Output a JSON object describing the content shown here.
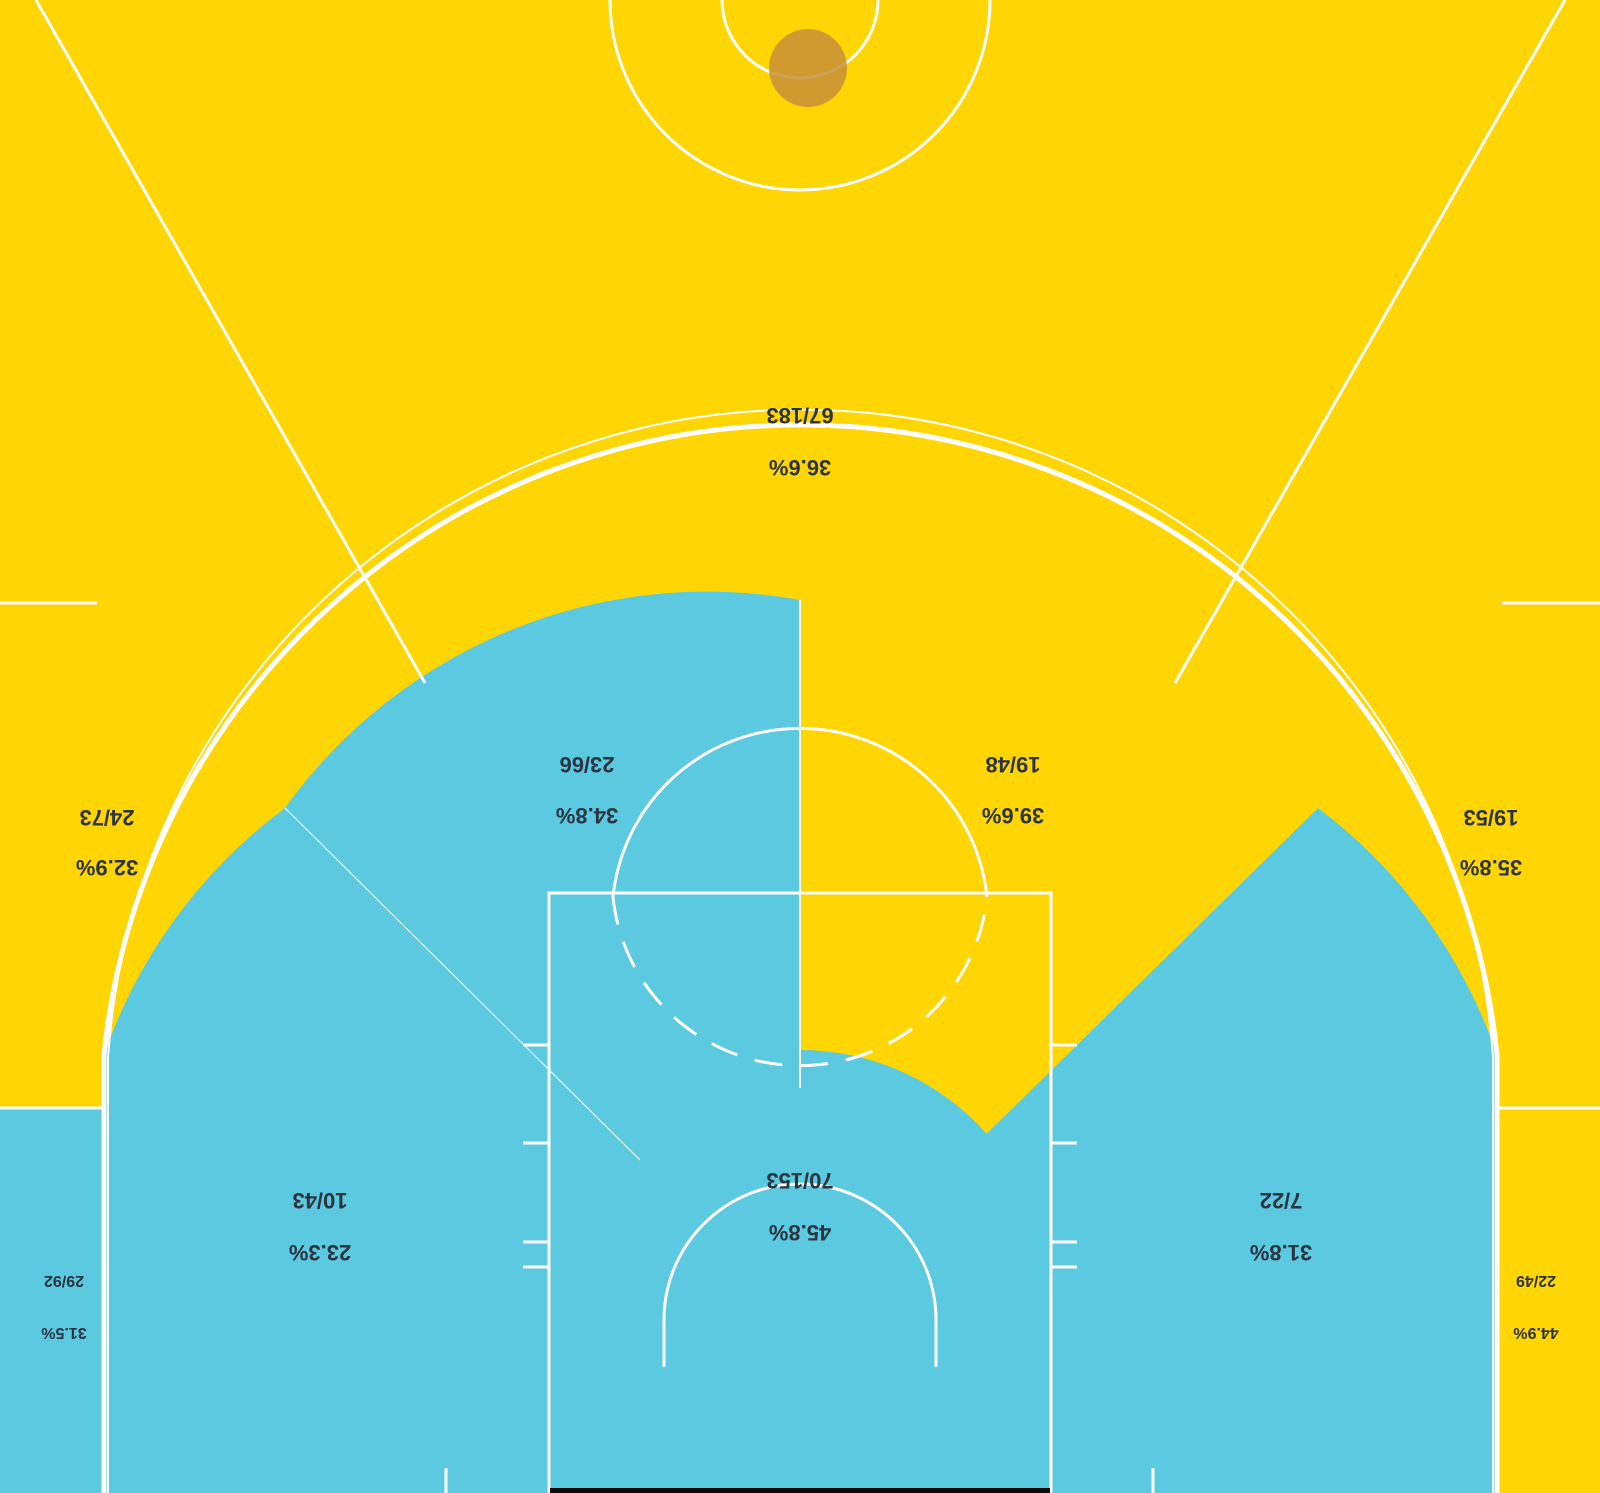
{
  "chart_data": {
    "type": "heatmap",
    "subtype": "basketball-shot-zones",
    "orientation": "rotated-180",
    "legend": {
      "hot": {
        "label": "",
        "color": "#FFD503"
      },
      "cold": {
        "label": "",
        "color": "#5BC9E0"
      }
    },
    "zones": [
      {
        "id": "above-break-three",
        "made": 67,
        "attempts": 183,
        "pct": 36.6,
        "fraction": "67/183",
        "percent": "36.6%",
        "temp": "hot"
      },
      {
        "id": "right-wing-three",
        "made": 24,
        "attempts": 73,
        "pct": 32.9,
        "fraction": "24/73",
        "percent": "32.9%",
        "temp": "hot"
      },
      {
        "id": "left-wing-three",
        "made": 19,
        "attempts": 53,
        "pct": 35.8,
        "fraction": "19/53",
        "percent": "35.8%",
        "temp": "hot"
      },
      {
        "id": "right-corner-three",
        "made": 29,
        "attempts": 92,
        "pct": 31.5,
        "fraction": "29/92",
        "percent": "31.5%",
        "temp": "cold"
      },
      {
        "id": "left-corner-three",
        "made": 22,
        "attempts": 49,
        "pct": 44.9,
        "fraction": "22/49",
        "percent": "44.9%",
        "temp": "hot"
      },
      {
        "id": "mid-range-right-top",
        "made": 23,
        "attempts": 66,
        "pct": 34.8,
        "fraction": "23/66",
        "percent": "34.8%",
        "temp": "cold"
      },
      {
        "id": "mid-range-left-top",
        "made": 19,
        "attempts": 48,
        "pct": 39.6,
        "fraction": "19/48",
        "percent": "39.6%",
        "temp": "hot"
      },
      {
        "id": "mid-range-right-baseline",
        "made": 10,
        "attempts": 43,
        "pct": 23.3,
        "fraction": "10/43",
        "percent": "23.3%",
        "temp": "cold"
      },
      {
        "id": "mid-range-left-baseline",
        "made": 7,
        "attempts": 22,
        "pct": 31.8,
        "fraction": "7/22",
        "percent": "31.8%",
        "temp": "cold"
      },
      {
        "id": "restricted-area",
        "made": 70,
        "attempts": 153,
        "pct": 45.8,
        "fraction": "70/153",
        "percent": "45.8%",
        "temp": "cold"
      }
    ]
  },
  "colors": {
    "hot": "#FFD503",
    "cold": "#5BC9E0",
    "lines": "#ffffff",
    "background": "#0b0b0b",
    "label": "#2b3440",
    "ball": "#c88f3a"
  }
}
